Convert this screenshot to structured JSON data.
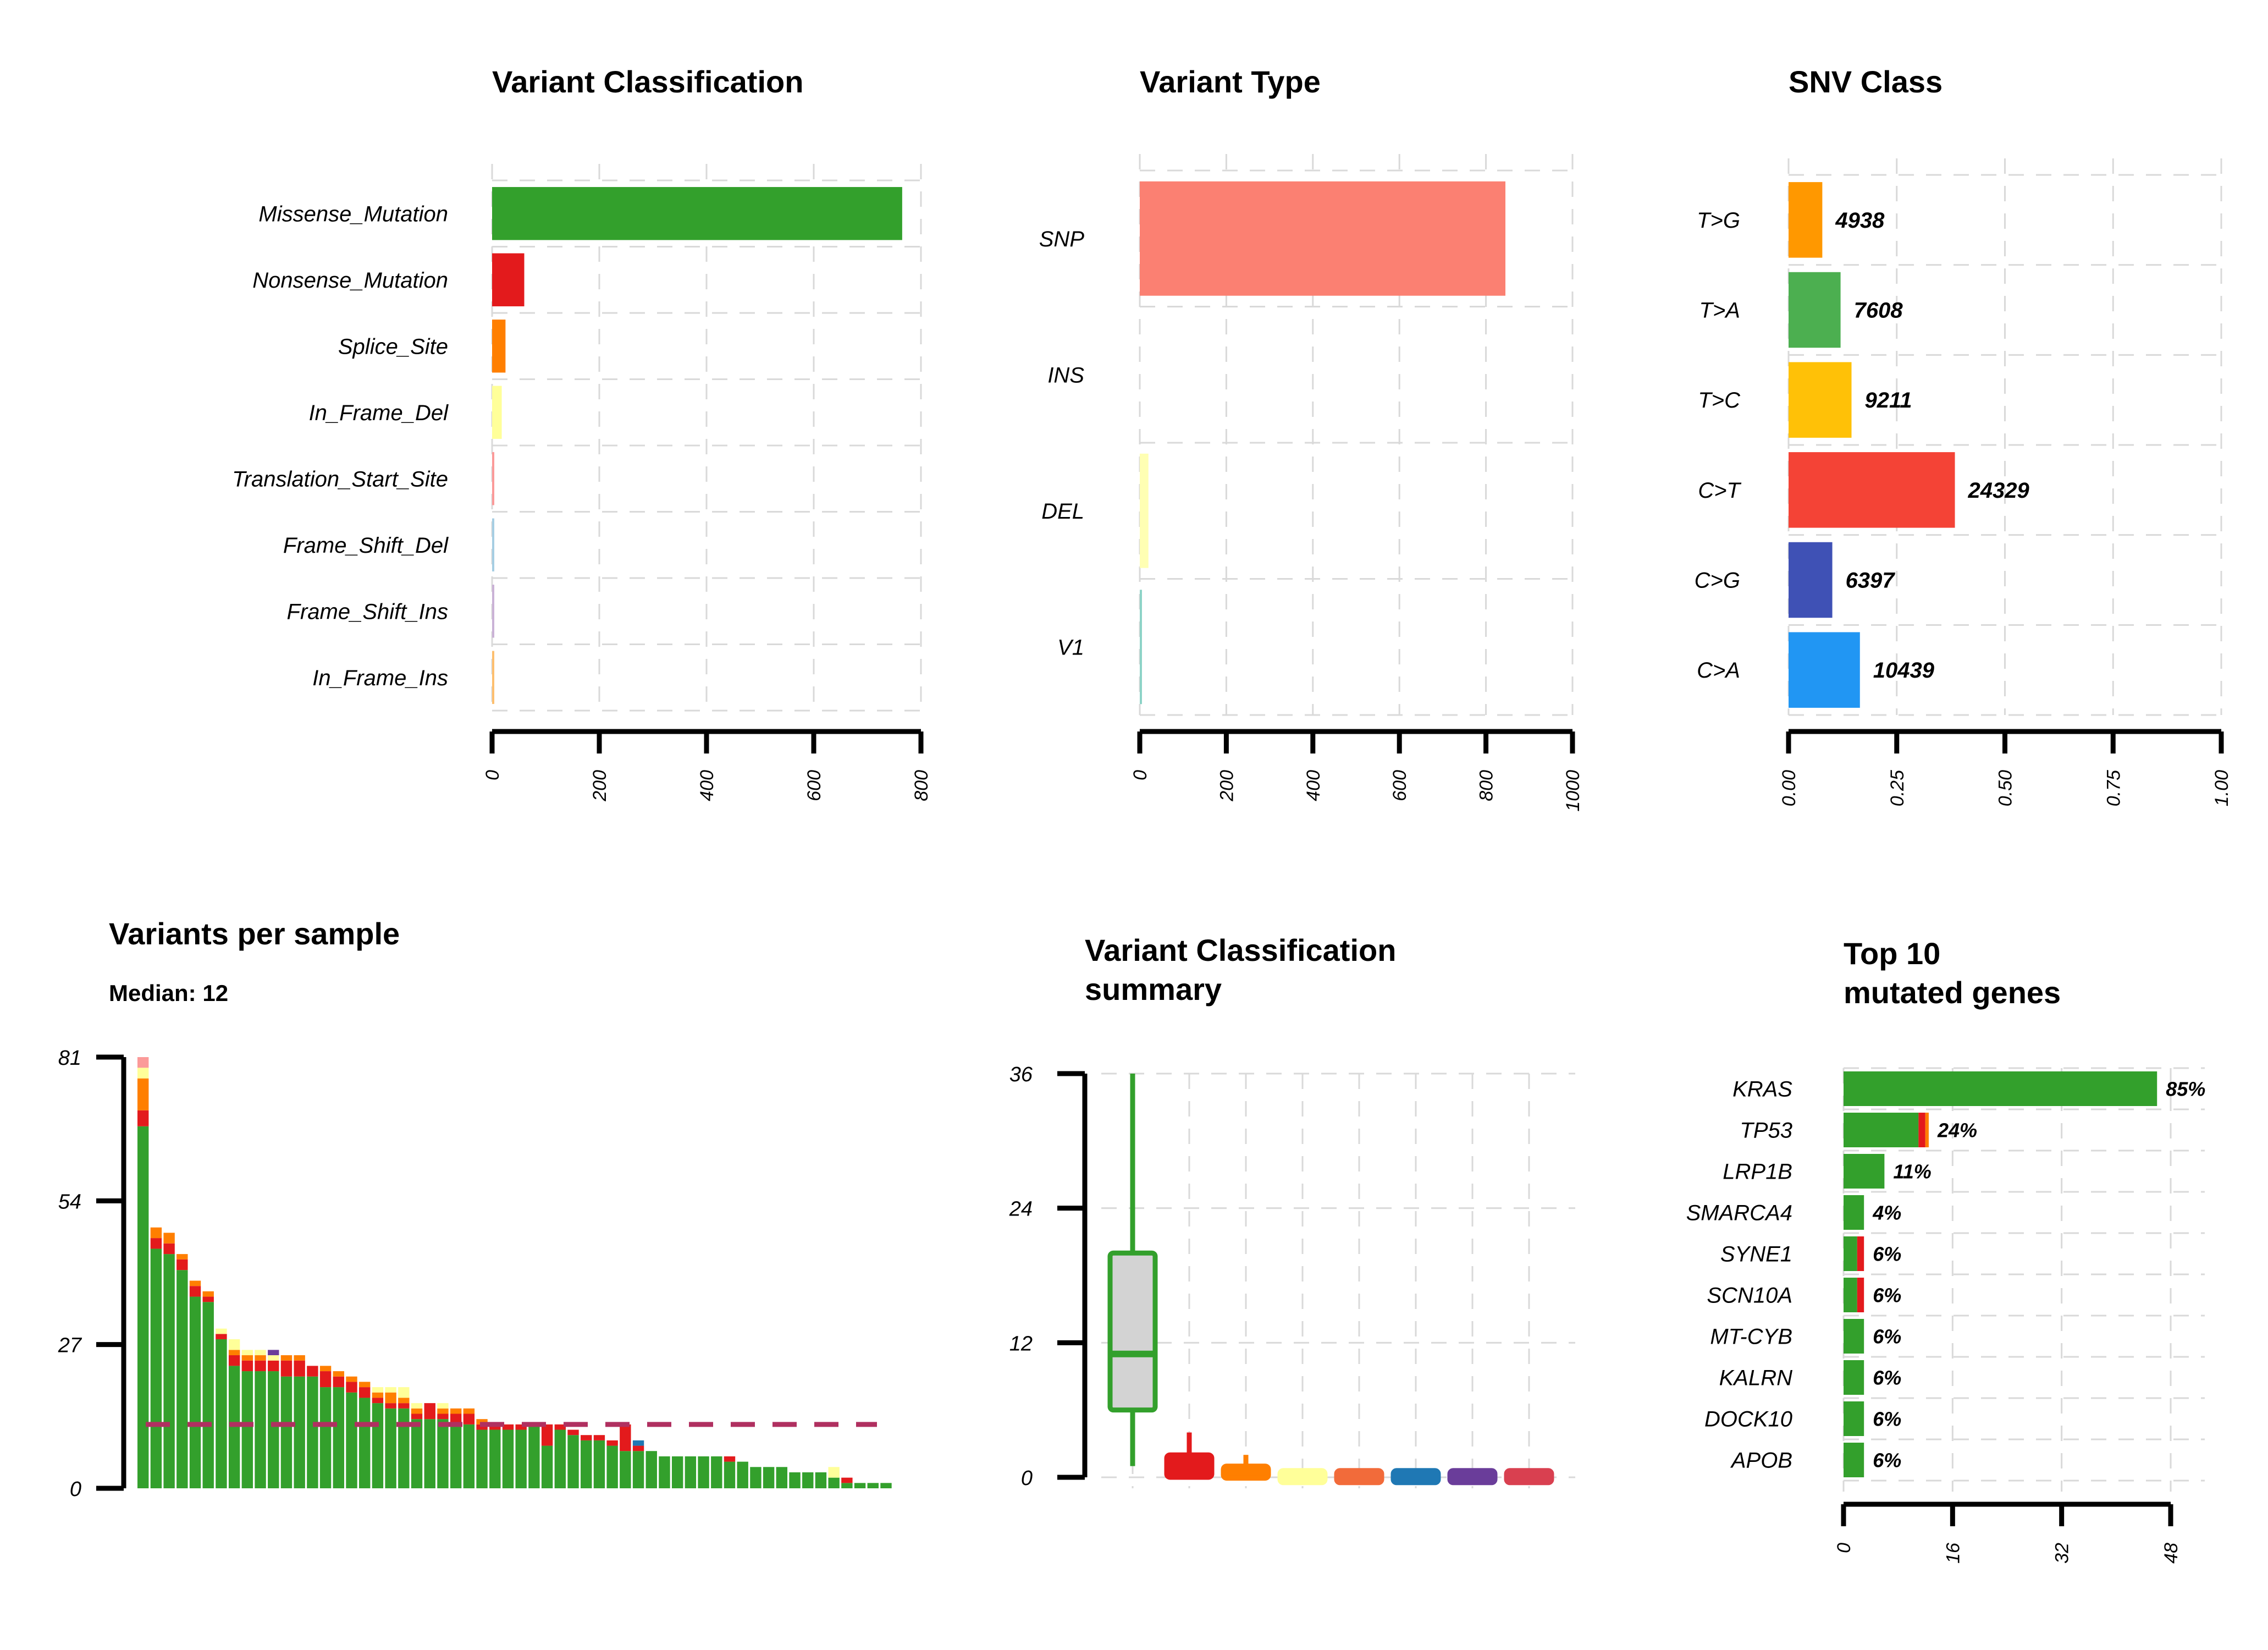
{
  "chart_data": [
    {
      "id": "variant_classification",
      "type": "bar",
      "orientation": "horizontal",
      "title": "Variant Classification",
      "categories": [
        "Missense_Mutation",
        "Nonsense_Mutation",
        "Splice_Site",
        "In_Frame_Del",
        "Translation_Start_Site",
        "Frame_Shift_Del",
        "Frame_Shift_Ins",
        "In_Frame_Ins"
      ],
      "values": [
        765,
        60,
        25,
        18,
        3,
        3,
        3,
        3
      ],
      "colors": [
        "#33a02c",
        "#e31a1c",
        "#ff7f00",
        "#ffff99",
        "#fb9a99",
        "#a6cee3",
        "#cab2d6",
        "#fdbf6f"
      ],
      "xlim": [
        0,
        800
      ],
      "xticks": [
        "0",
        "200",
        "400",
        "600",
        "800"
      ],
      "grid": true
    },
    {
      "id": "variant_type",
      "type": "bar",
      "orientation": "horizontal",
      "title": "Variant Type",
      "categories": [
        "SNP",
        "INS",
        "DEL",
        "V1"
      ],
      "values": [
        845,
        0,
        20,
        2
      ],
      "colors": [
        "#fb8072",
        "#b3de69",
        "#ffffb3",
        "#8dd3c7"
      ],
      "xlim": [
        0,
        1000
      ],
      "xticks": [
        "0",
        "200",
        "400",
        "600",
        "800",
        "1000"
      ],
      "grid": true
    },
    {
      "id": "snv_class",
      "type": "bar",
      "orientation": "horizontal",
      "title": "SNV Class",
      "categories": [
        "T>G",
        "T>A",
        "T>C",
        "C>T",
        "C>G",
        "C>A"
      ],
      "counts": [
        "4938",
        "7608",
        "9211",
        "24329",
        "6397",
        "10439"
      ],
      "values": [
        0.078,
        0.1202,
        0.1455,
        0.3844,
        0.1011,
        0.1649
      ],
      "colors": [
        "#ff9800",
        "#4caf50",
        "#ffc107",
        "#f44336",
        "#3f51b5",
        "#2196f3"
      ],
      "xlim": [
        0,
        1
      ],
      "xticks": [
        "0.00",
        "0.25",
        "0.50",
        "0.75",
        "1.00"
      ],
      "grid": true
    },
    {
      "id": "variants_per_sample",
      "type": "bar",
      "stacked": true,
      "title": "Variants per sample",
      "subtitle": "Median: 12",
      "ylim": [
        0,
        81
      ],
      "yticks": [
        "0",
        "27",
        "54",
        "81"
      ],
      "median": 12,
      "median_color": "#b03060",
      "series": [
        {
          "name": "Missense_Mutation",
          "color": "#33a02c",
          "values": [
            68,
            45,
            44,
            41,
            36,
            35,
            28,
            23,
            22,
            22,
            22,
            21,
            21,
            21,
            19,
            19,
            18,
            17,
            16,
            15,
            15,
            13,
            13,
            13,
            12,
            12,
            11,
            11,
            11,
            11,
            12,
            8,
            11,
            10,
            9,
            9,
            8,
            7,
            7,
            7,
            6,
            6,
            6,
            6,
            6,
            5,
            5,
            4,
            4,
            4,
            3,
            3,
            3,
            2,
            1,
            1,
            1,
            1
          ]
        },
        {
          "name": "Nonsense_Mutation",
          "color": "#e31a1c",
          "values": [
            3,
            2,
            2,
            2,
            2,
            1,
            1,
            2,
            2,
            2,
            2,
            3,
            3,
            2,
            3,
            2,
            2,
            2,
            1,
            1,
            1,
            1,
            3,
            1,
            2,
            2,
            1,
            1,
            1,
            1,
            0,
            4,
            1,
            1,
            1,
            1,
            1,
            5,
            1,
            0,
            0,
            0,
            0,
            0,
            0,
            1,
            0,
            0,
            0,
            0,
            0,
            0,
            0,
            0,
            1,
            0,
            0,
            0
          ]
        },
        {
          "name": "Splice_Site",
          "color": "#ff7f00",
          "values": [
            6,
            2,
            2,
            1,
            1,
            1,
            0,
            1,
            1,
            1,
            0,
            1,
            1,
            0,
            1,
            1,
            1,
            1,
            1,
            2,
            1,
            1,
            0,
            1,
            1,
            1,
            1,
            0,
            0,
            0,
            0,
            0,
            0,
            0,
            0,
            0,
            0,
            0,
            0,
            0,
            0,
            0,
            0,
            0,
            0,
            0,
            0,
            0,
            0,
            0,
            0,
            0,
            0,
            0,
            0,
            0,
            0,
            0
          ]
        },
        {
          "name": "In_Frame_Del",
          "color": "#ffff99",
          "values": [
            2,
            0,
            0,
            0,
            0,
            0,
            1,
            2,
            1,
            1,
            1,
            0,
            0,
            0,
            0,
            0,
            0,
            0,
            1,
            1,
            2,
            1,
            0,
            1,
            0,
            0,
            0,
            0,
            0,
            0,
            0,
            0,
            0,
            0,
            0,
            0,
            0,
            0,
            0,
            0,
            0,
            0,
            0,
            0,
            0,
            0,
            0,
            0,
            0,
            0,
            0,
            0,
            0,
            2,
            0,
            0,
            0,
            0
          ]
        },
        {
          "name": "Translation_Start_Site",
          "color": "#fb9a99",
          "values": [
            2,
            0,
            0,
            0,
            0,
            0,
            0,
            0,
            0,
            0,
            0,
            0,
            0,
            0,
            0,
            0,
            0,
            0,
            0,
            0,
            0,
            0,
            0,
            0,
            0,
            0,
            0,
            0,
            0,
            0,
            0,
            0,
            0,
            0,
            0,
            0,
            0,
            0,
            0,
            0,
            0,
            0,
            0,
            0,
            0,
            0,
            0,
            0,
            0,
            0,
            0,
            0,
            0,
            0,
            0,
            0,
            0,
            0
          ]
        },
        {
          "name": "Frame_Shift_Del",
          "color": "#1f78b4",
          "values": [
            0,
            0,
            0,
            0,
            0,
            0,
            0,
            0,
            0,
            0,
            0,
            0,
            0,
            0,
            0,
            0,
            0,
            0,
            0,
            0,
            0,
            0,
            0,
            0,
            0,
            0,
            0,
            0,
            0,
            0,
            0,
            0,
            0,
            0,
            0,
            0,
            0,
            0,
            1,
            0,
            0,
            0,
            0,
            0,
            0,
            0,
            0,
            0,
            0,
            0,
            0,
            0,
            0,
            0,
            0,
            0,
            0,
            0
          ]
        },
        {
          "name": "Frame_Shift_Ins",
          "color": "#6a3d9a",
          "values": [
            0,
            0,
            0,
            0,
            0,
            0,
            0,
            0,
            0,
            0,
            1,
            0,
            0,
            0,
            0,
            0,
            0,
            0,
            0,
            0,
            0,
            0,
            0,
            0,
            0,
            0,
            0,
            0,
            0,
            0,
            0,
            0,
            0,
            0,
            0,
            0,
            0,
            0,
            0,
            0,
            0,
            0,
            0,
            0,
            0,
            0,
            0,
            0,
            0,
            0,
            0,
            0,
            0,
            0,
            0,
            0,
            0,
            0
          ]
        }
      ]
    },
    {
      "id": "variant_classification_summary",
      "type": "box",
      "title_lines": [
        "Variant Classification",
        "summary"
      ],
      "ylim": [
        0,
        36
      ],
      "yticks": [
        "0",
        "12",
        "24",
        "36"
      ],
      "boxes": [
        {
          "name": "Missense_Mutation",
          "color": "#33a02c",
          "fill": "#d3d3d3",
          "min": 1,
          "q1": 6,
          "median": 11,
          "q3": 20,
          "max": 36
        },
        {
          "name": "Nonsense_Mutation",
          "color": "#e31a1c",
          "fill": "#e31a1c",
          "min": 0,
          "q1": 0,
          "median": 0.5,
          "q3": 2,
          "max": 4
        },
        {
          "name": "Splice_Site",
          "color": "#ff7f00",
          "fill": "#ff7f00",
          "min": 0,
          "q1": 0,
          "median": 0.5,
          "q3": 1,
          "max": 2
        },
        {
          "name": "In_Frame_Del",
          "color": "#ffff99",
          "fill": "#ffff99",
          "min": 0,
          "q1": 0,
          "median": 0,
          "q3": 0.6,
          "max": 0.6
        },
        {
          "name": "Translation_Start_Site",
          "color": "#f26b3a",
          "fill": "#f26b3a",
          "min": 0,
          "q1": 0,
          "median": 0,
          "q3": 0.6,
          "max": 0.6
        },
        {
          "name": "Frame_Shift_Del",
          "color": "#1f78b4",
          "fill": "#1f78b4",
          "min": 0,
          "q1": 0,
          "median": 0,
          "q3": 0.6,
          "max": 0.6
        },
        {
          "name": "Frame_Shift_Ins",
          "color": "#6a3d9a",
          "fill": "#6a3d9a",
          "min": 0,
          "q1": 0,
          "median": 0,
          "q3": 0.6,
          "max": 0.6
        },
        {
          "name": "In_Frame_Ins",
          "color": "#d94050",
          "fill": "#d94050",
          "min": 0,
          "q1": 0,
          "median": 0,
          "q3": 0.6,
          "max": 0.6
        }
      ]
    },
    {
      "id": "top10_genes",
      "type": "bar",
      "orientation": "horizontal",
      "stacked": true,
      "title_lines": [
        "Top 10",
        "mutated genes"
      ],
      "categories": [
        "KRAS",
        "TP53",
        "LRP1B",
        "SMARCA4",
        "SYNE1",
        "SCN10A",
        "MT-CYB",
        "KALRN",
        "DOCK10",
        "APOB"
      ],
      "percent_labels": [
        "85%",
        "24%",
        "11%",
        "4%",
        "6%",
        "6%",
        "6%",
        "6%",
        "6%",
        "6%"
      ],
      "xlim": [
        0,
        48
      ],
      "xticks": [
        "0",
        "16",
        "32",
        "48"
      ],
      "series": [
        {
          "name": "Missense_Mutation",
          "color": "#33a02c",
          "values": [
            46,
            11,
            6,
            3,
            2,
            2,
            3,
            3,
            3,
            3
          ]
        },
        {
          "name": "Nonsense_Mutation",
          "color": "#e31a1c",
          "values": [
            0,
            1,
            0,
            0,
            1,
            1,
            0,
            0,
            0,
            0
          ]
        },
        {
          "name": "Splice_Site",
          "color": "#ff7f00",
          "values": [
            0,
            0.5,
            0,
            0,
            0,
            0,
            0,
            0,
            0,
            0
          ]
        }
      ]
    }
  ]
}
